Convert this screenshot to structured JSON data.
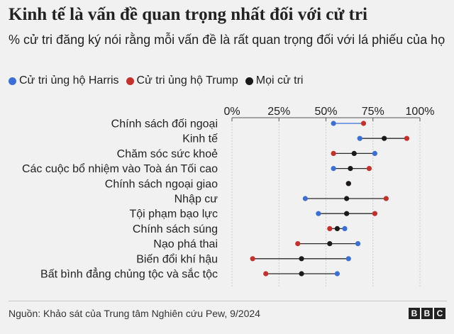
{
  "title": "Kinh tế là vấn đề quan trọng nhất đối với cử tri",
  "subtitle": "% cử tri đăng ký nói rằng mỗi vấn đề là rất quan trọng đối với lá phiếu của họ",
  "legend": [
    {
      "label": "Cử tri ủng hộ Harris",
      "color": "#3b6fd6"
    },
    {
      "label": "Cử tri ủng hộ Trump",
      "color": "#c4302b"
    },
    {
      "label": "Mọi cử tri",
      "color": "#1a1a1a"
    }
  ],
  "chart_data": {
    "type": "dot",
    "title": "Kinh tế là vấn đề quan trọng nhất đối với cử tri",
    "xlim": [
      0,
      100
    ],
    "x_ticks": [
      "0%",
      "25%",
      "50%",
      "75%",
      "100%"
    ],
    "x_tick_values": [
      0,
      25,
      50,
      75,
      100
    ],
    "categories": [
      "Chính sách đối ngoại",
      "Kinh tế",
      "Chăm sóc sức khoẻ",
      "Các cuộc bổ nhiệm vào Toà án Tối cao",
      "Chính sách ngoại giao",
      "Nhập cư",
      "Tội phạm bạo lực",
      "Chính sách súng",
      "Nạo phá thai",
      "Biến đổi khí hậu",
      "Bất bình đẳng chủng tộc và sắc tộc"
    ],
    "series": [
      {
        "name": "Cử tri ủng hộ Harris",
        "color": "#3b6fd6",
        "values": [
          54,
          68,
          76,
          54,
          62,
          39,
          46,
          60,
          67,
          62,
          56
        ]
      },
      {
        "name": "Cử tri ủng hộ Trump",
        "color": "#c4302b",
        "values": [
          70,
          93,
          54,
          73,
          62,
          82,
          76,
          52,
          35,
          11,
          18
        ]
      },
      {
        "name": "Mọi cử tri",
        "color": "#1a1a1a",
        "values": null,
        "values_list": [
          null,
          81,
          65,
          63,
          62,
          61,
          61,
          56,
          52,
          37,
          37
        ]
      }
    ]
  },
  "footer": {
    "source": "Nguồn: Khảo sát của Trung tâm Nghiên cứu Pew, 9/2024",
    "logo": [
      "B",
      "B",
      "C"
    ]
  }
}
